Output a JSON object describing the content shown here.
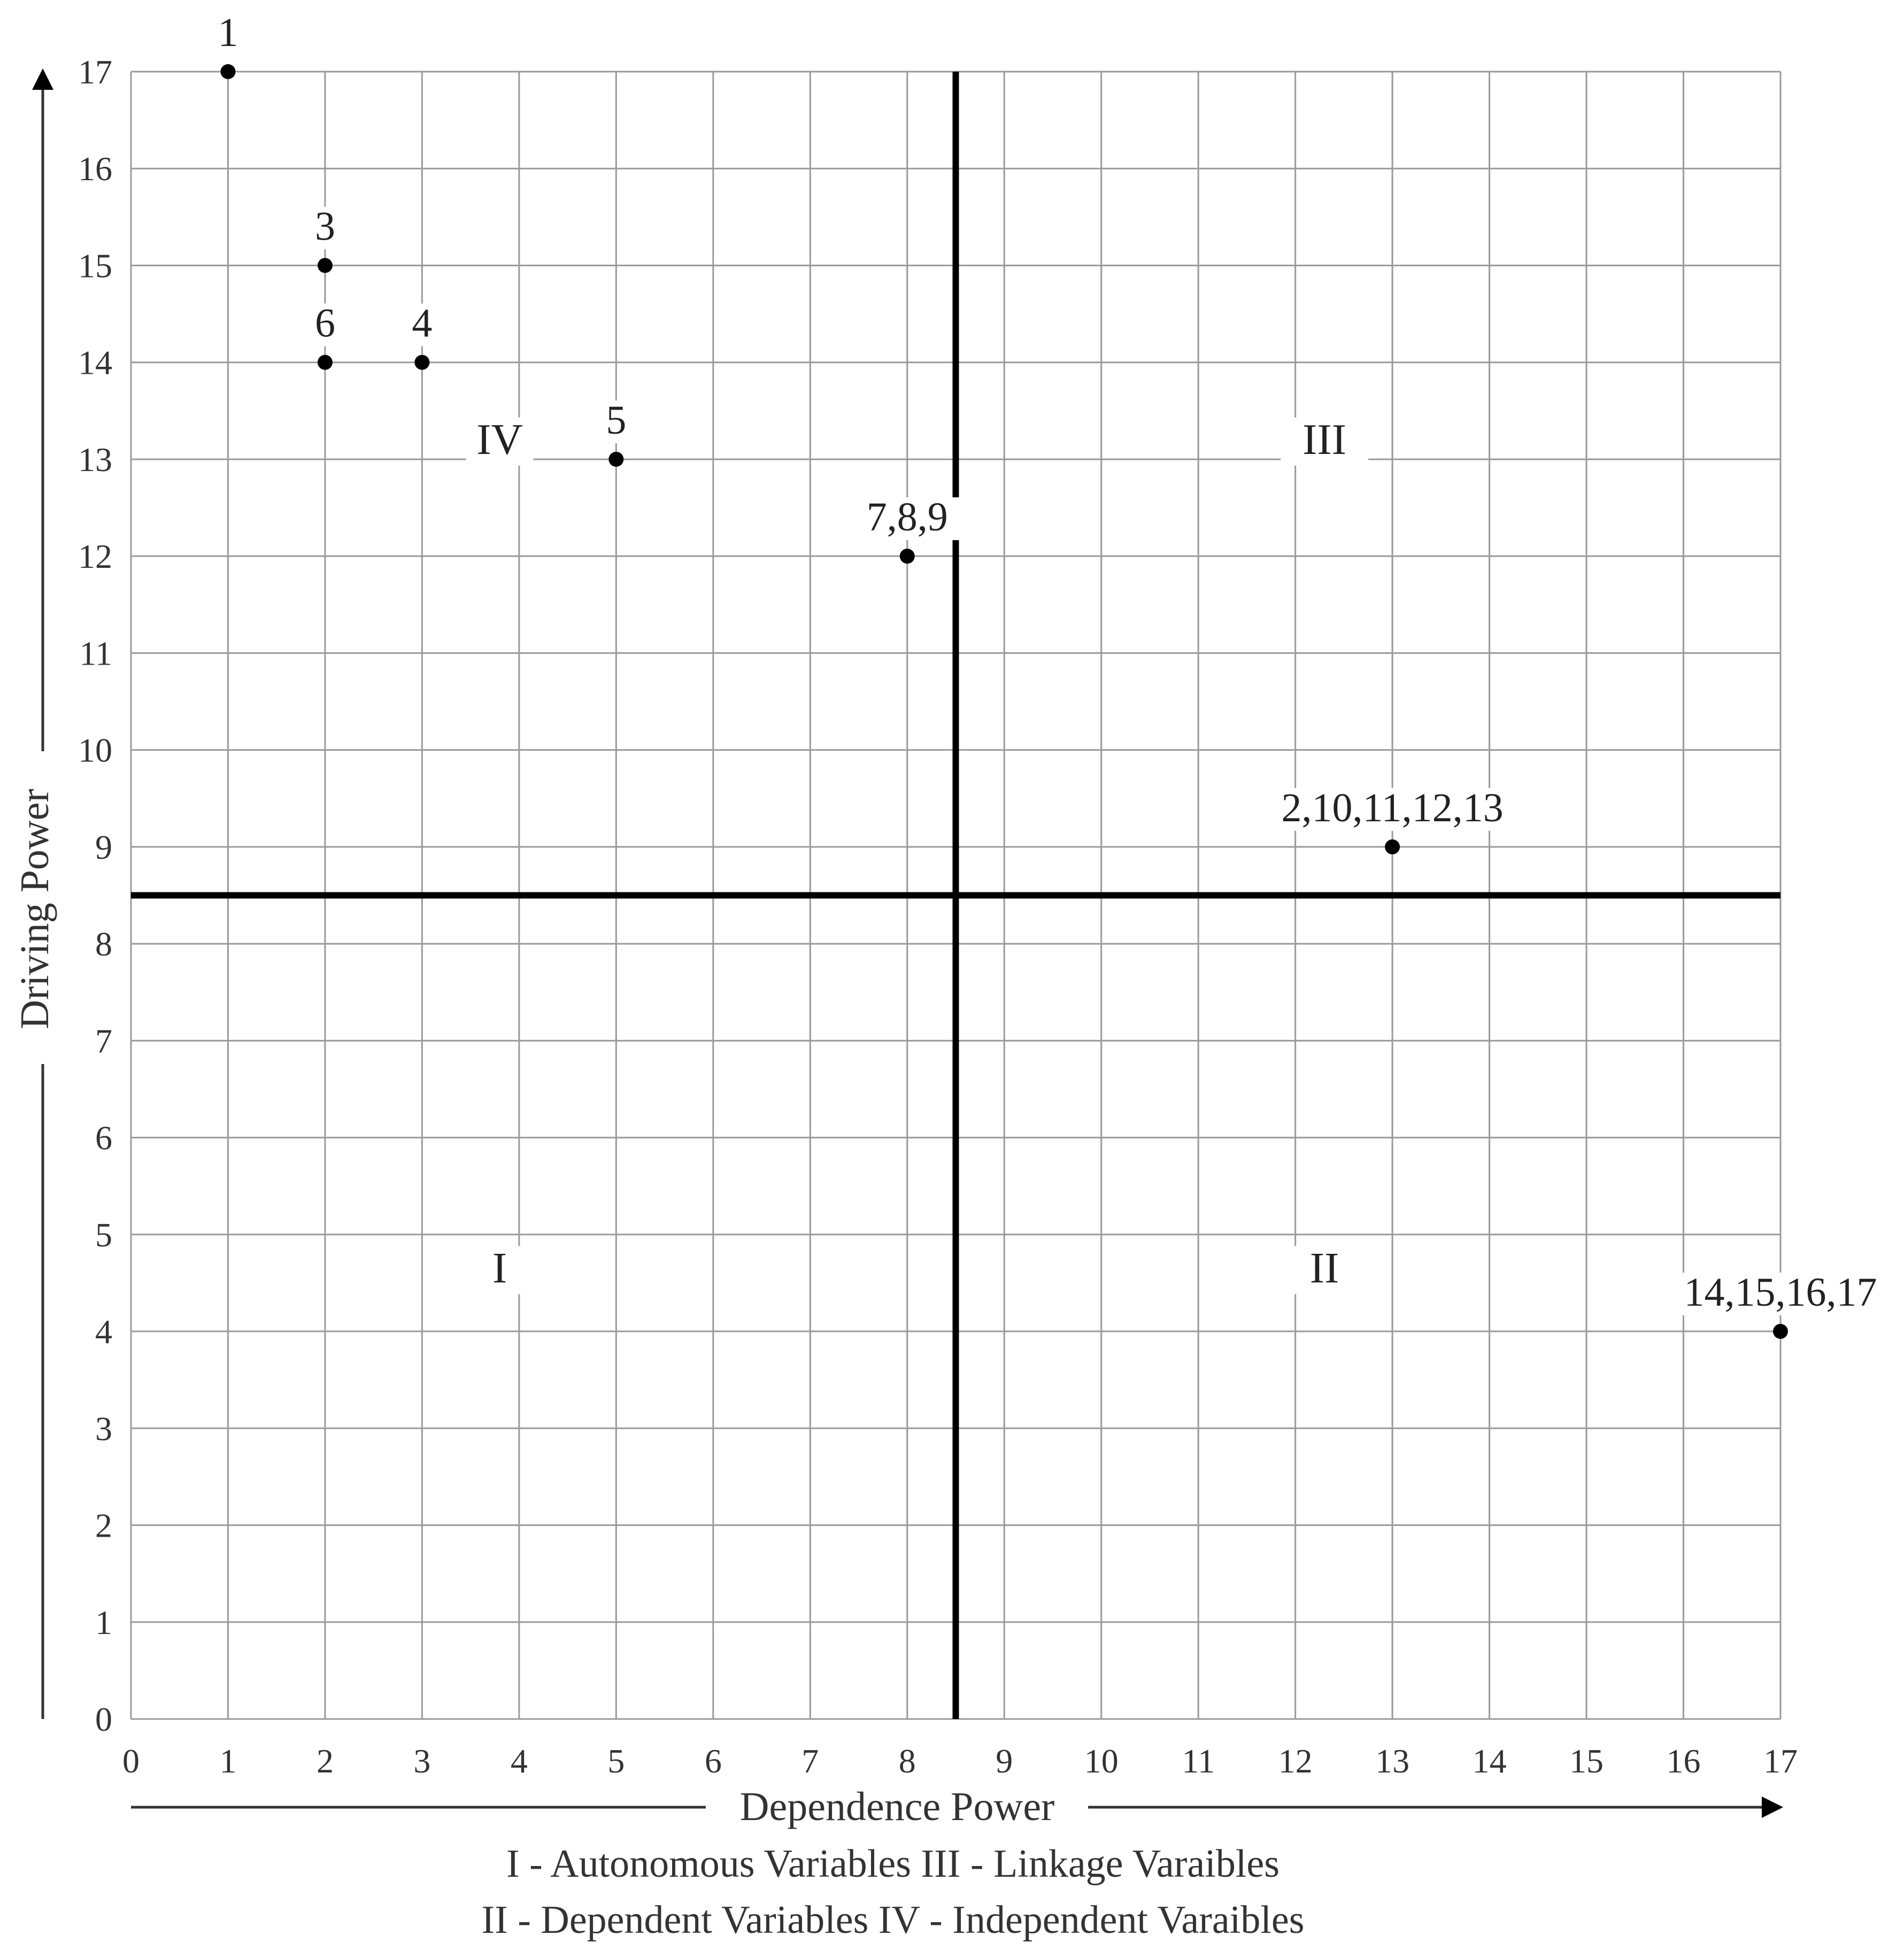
{
  "chart_data": {
    "type": "scatter",
    "xlabel": "Dependence Power",
    "ylabel": "Driving Power",
    "xlim": [
      0,
      17
    ],
    "ylim": [
      0,
      17
    ],
    "x_ticks": [
      "0",
      "1",
      "2",
      "3",
      "4",
      "5",
      "6",
      "7",
      "8",
      "9",
      "10",
      "11",
      "12",
      "13",
      "14",
      "15",
      "16",
      "17"
    ],
    "y_ticks": [
      "0",
      "1",
      "2",
      "3",
      "4",
      "5",
      "6",
      "7",
      "8",
      "9",
      "10",
      "11",
      "12",
      "13",
      "14",
      "15",
      "16",
      "17"
    ],
    "grid": true,
    "divider_x": 8.5,
    "divider_y": 8.5,
    "points": [
      {
        "x": 1,
        "y": 17,
        "label": "1"
      },
      {
        "x": 2,
        "y": 15,
        "label": "3"
      },
      {
        "x": 2,
        "y": 14,
        "label": "6"
      },
      {
        "x": 3,
        "y": 14,
        "label": "4"
      },
      {
        "x": 5,
        "y": 13,
        "label": "5"
      },
      {
        "x": 8,
        "y": 12,
        "label": "7,8,9"
      },
      {
        "x": 13,
        "y": 9,
        "label": "2,10,11,12,13"
      },
      {
        "x": 17,
        "y": 4,
        "label": "14,15,16,17"
      }
    ],
    "quadrant_labels": [
      {
        "text": "IV",
        "x": 3.8,
        "y": 13.1
      },
      {
        "text": "III",
        "x": 12.3,
        "y": 13.1
      },
      {
        "text": "I",
        "x": 3.8,
        "y": 4.55
      },
      {
        "text": "II",
        "x": 12.3,
        "y": 4.55
      }
    ],
    "caption_lines": [
      "I - Autonomous Variables III - Linkage Varaibles",
      "II - Dependent Variables IV - Independent Varaibles"
    ]
  }
}
